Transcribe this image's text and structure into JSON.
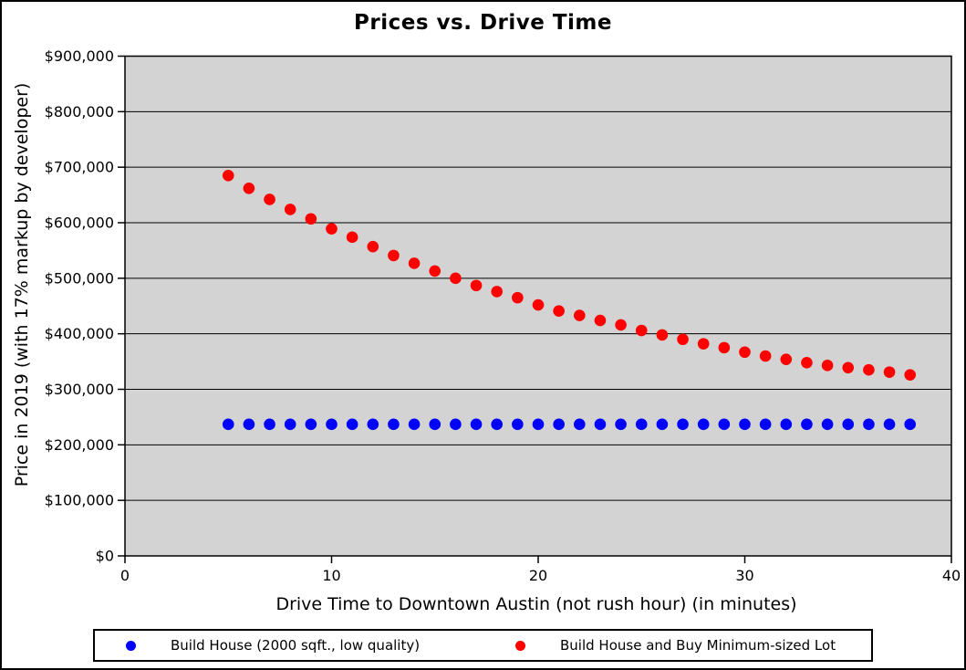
{
  "figure": {
    "title": "Prices vs. Drive Time",
    "background_color": "#ffffff",
    "border_color": "#000000"
  },
  "chart_data": {
    "type": "scatter",
    "title": "Prices vs. Drive Time",
    "xlabel": "Drive Time to Downtown Austin (not rush hour) (in minutes)",
    "ylabel": "Price in 2019 (with 17% markup by developer)",
    "xlim": [
      0,
      40
    ],
    "ylim": [
      0,
      900000
    ],
    "x_ticks": [
      {
        "value": 0,
        "label": "0"
      },
      {
        "value": 10,
        "label": "10"
      },
      {
        "value": 20,
        "label": "20"
      },
      {
        "value": 30,
        "label": "30"
      },
      {
        "value": 40,
        "label": "40"
      }
    ],
    "y_ticks": [
      {
        "value": 0,
        "label": "$0"
      },
      {
        "value": 100000,
        "label": "$100,000"
      },
      {
        "value": 200000,
        "label": "$200,000"
      },
      {
        "value": 300000,
        "label": "$300,000"
      },
      {
        "value": 400000,
        "label": "$400,000"
      },
      {
        "value": 500000,
        "label": "$500,000"
      },
      {
        "value": 600000,
        "label": "$600,000"
      },
      {
        "value": 700000,
        "label": "$700,000"
      },
      {
        "value": 800000,
        "label": "$800,000"
      },
      {
        "value": 900000,
        "label": "$900,000"
      }
    ],
    "grid": "horizontal-only",
    "plot_background": "#d3d3d3",
    "grid_color": "#000000",
    "legend_position": "bottom-outside",
    "x": [
      5,
      6,
      7,
      8,
      9,
      10,
      11,
      12,
      13,
      14,
      15,
      16,
      17,
      18,
      19,
      20,
      21,
      22,
      23,
      24,
      25,
      26,
      27,
      28,
      29,
      30,
      31,
      32,
      33,
      34,
      35,
      36,
      37,
      38
    ],
    "series": [
      {
        "name": "Build House (2000 sqft., low quality)",
        "color": "#0000ff",
        "marker": "circle",
        "values": [
          237000,
          237000,
          237000,
          237000,
          237000,
          237000,
          237000,
          237000,
          237000,
          237000,
          237000,
          237000,
          237000,
          237000,
          237000,
          237000,
          237000,
          237000,
          237000,
          237000,
          237000,
          237000,
          237000,
          237000,
          237000,
          237000,
          237000,
          237000,
          237000,
          237000,
          237000,
          237000,
          237000,
          237000
        ]
      },
      {
        "name": "Build House and Buy Minimum-sized Lot",
        "color": "#ff0000",
        "marker": "circle",
        "values": [
          685000,
          662000,
          642000,
          624000,
          607000,
          589000,
          574000,
          557000,
          541000,
          527000,
          513000,
          500000,
          487000,
          476000,
          465000,
          452000,
          441000,
          433000,
          424000,
          416000,
          406000,
          398000,
          390000,
          382000,
          375000,
          367000,
          360000,
          354000,
          348000,
          343000,
          339000,
          335000,
          331000,
          326000
        ]
      }
    ]
  }
}
